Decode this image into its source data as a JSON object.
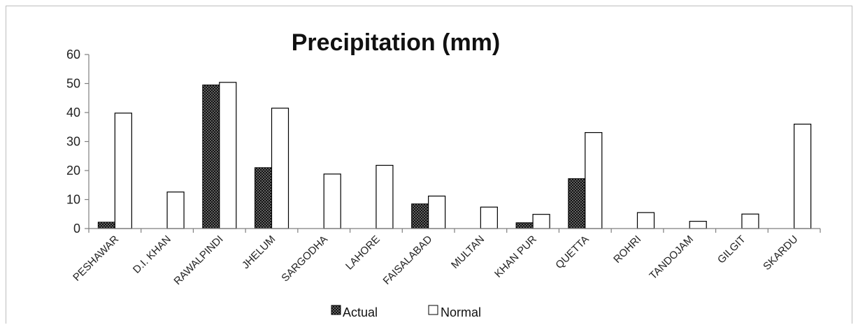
{
  "chart_data": {
    "type": "bar",
    "title": "Precipitation (mm)",
    "xlabel": "",
    "ylabel": "",
    "ylim": [
      0,
      60
    ],
    "yticks": [
      "0",
      "10",
      "20",
      "30",
      "40",
      "50",
      "60"
    ],
    "grid": false,
    "legend_position": "bottom",
    "categories": [
      "PESHAWAR",
      "D.I. KHAN",
      "RAWALPINDI",
      "JHELUM",
      "SARGODHA",
      "LAHORE",
      "FAISALABAD",
      "MULTAN",
      "KHAN PUR",
      "QUETTA",
      "ROHRI",
      "TANDOJAM",
      "GILGIT",
      "SKARDU"
    ],
    "series": [
      {
        "name": "Actual",
        "values": [
          2.2,
          0,
          49.5,
          21,
          0,
          0,
          8.5,
          0,
          2,
          17.2,
          null,
          null,
          0,
          0
        ],
        "color": "#1a1a1a",
        "pattern": "dotted"
      },
      {
        "name": "Normal",
        "values": [
          39.8,
          12.6,
          50.4,
          41.5,
          18.8,
          21.8,
          11.2,
          7.4,
          4.9,
          33.1,
          5.5,
          2.5,
          5,
          36
        ],
        "color": "#ffffff"
      }
    ]
  }
}
